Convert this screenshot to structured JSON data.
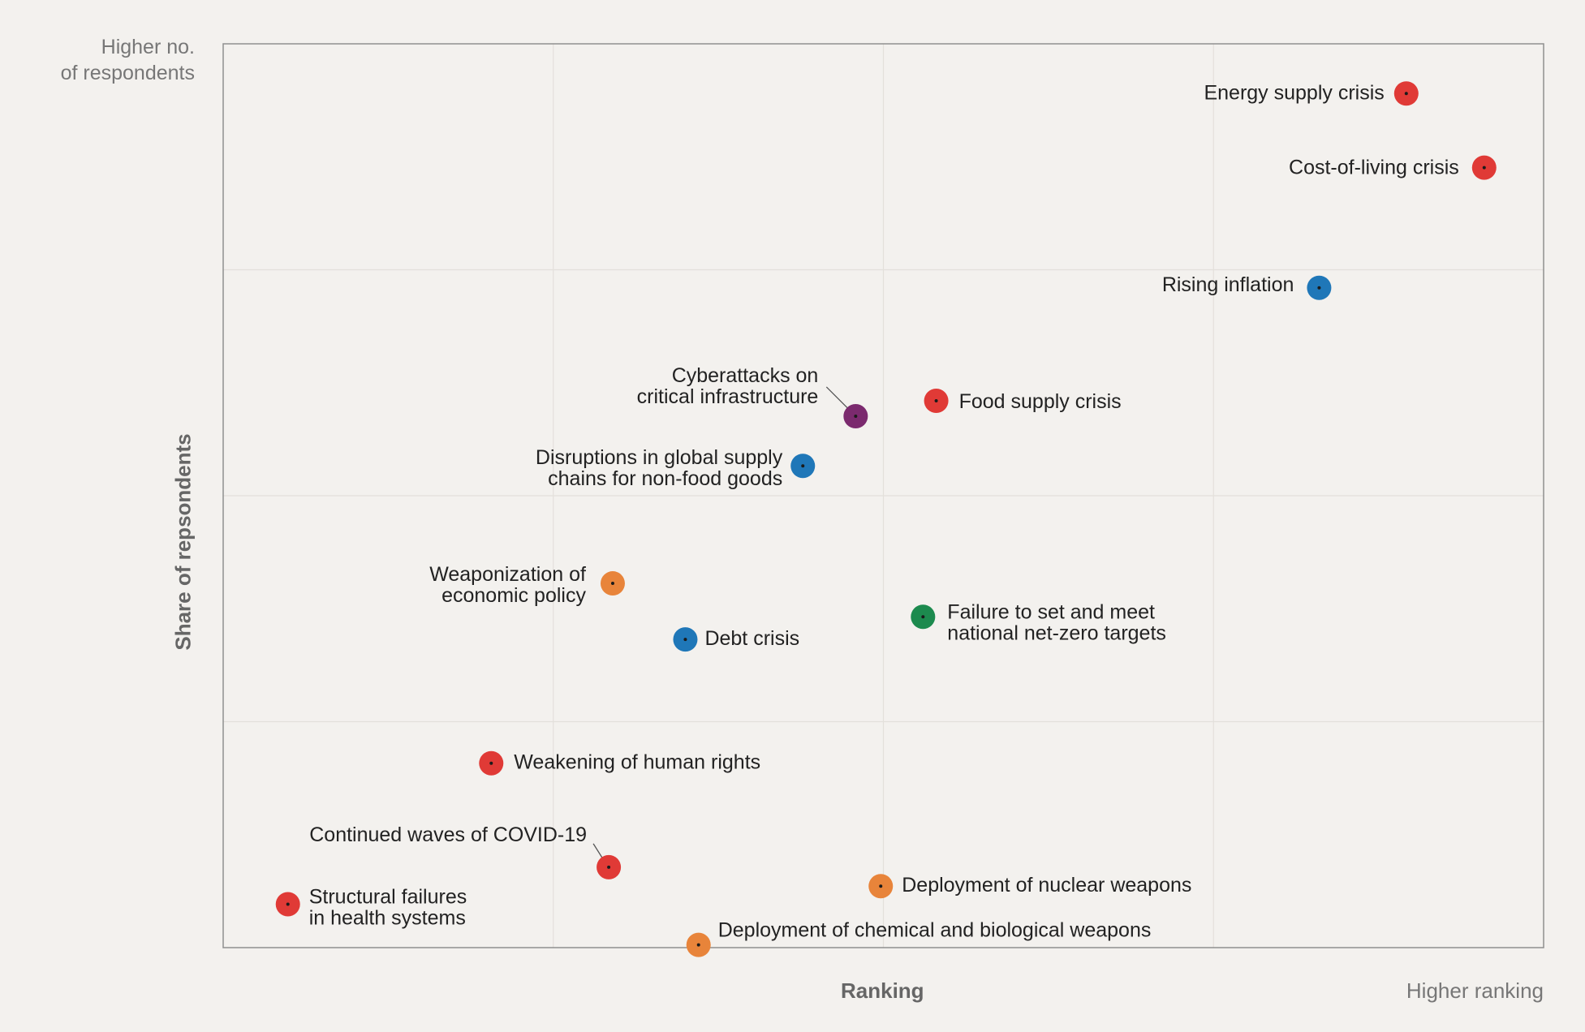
{
  "chart_data": {
    "type": "scatter",
    "title": "",
    "xlabel": "Ranking",
    "ylabel": "Share of repsondents",
    "x_high_label": "Higher ranking",
    "y_high_label": "Higher no. of respondents",
    "y_high_label_lines": [
      "Higher no.",
      "of respondents"
    ],
    "xlim": [
      0,
      1
    ],
    "ylim": [
      0,
      1
    ],
    "grid": true,
    "series": [
      {
        "label": "Energy supply crisis",
        "lines": [
          "Energy supply crisis"
        ],
        "x": 0.896,
        "y": 0.945,
        "color": "#e03a36"
      },
      {
        "label": "Cost-of-living crisis",
        "lines": [
          "Cost-of-living crisis"
        ],
        "x": 0.955,
        "y": 0.863,
        "color": "#e03a36"
      },
      {
        "label": "Rising inflation",
        "lines": [
          "Rising inflation"
        ],
        "x": 0.83,
        "y": 0.73,
        "color": "#1f77b8"
      },
      {
        "label": "Cyberattacks on critical infrastructure",
        "lines": [
          "Cyberattacks on",
          "critical infrastructure"
        ],
        "x": 0.479,
        "y": 0.588,
        "color": "#7b2a6e"
      },
      {
        "label": "Food supply crisis",
        "lines": [
          "Food supply crisis"
        ],
        "x": 0.54,
        "y": 0.605,
        "color": "#e03a36"
      },
      {
        "label": "Disruptions in global supply chains for non-food goods",
        "lines": [
          "Disruptions in global supply",
          "chains for non-food goods"
        ],
        "x": 0.439,
        "y": 0.533,
        "color": "#1f77b8"
      },
      {
        "label": "Weaponization of economic policy",
        "lines": [
          "Weaponization of",
          "economic policy"
        ],
        "x": 0.295,
        "y": 0.403,
        "color": "#e8843a"
      },
      {
        "label": "Debt crisis",
        "lines": [
          "Debt crisis"
        ],
        "x": 0.35,
        "y": 0.341,
        "color": "#1f77b8"
      },
      {
        "label": "Failure to set and meet national net-zero targets",
        "lines": [
          "Failure to set and meet",
          "national net-zero targets"
        ],
        "x": 0.53,
        "y": 0.366,
        "color": "#1c8a4e"
      },
      {
        "label": "Weakening of human rights",
        "lines": [
          "Weakening of human rights"
        ],
        "x": 0.203,
        "y": 0.204,
        "color": "#e03a36"
      },
      {
        "label": "Continued waves of COVID-19",
        "lines": [
          "Continued waves of COVID-19"
        ],
        "x": 0.292,
        "y": 0.089,
        "color": "#e03a36"
      },
      {
        "label": "Deployment of nuclear weapons",
        "lines": [
          "Deployment of nuclear weapons"
        ],
        "x": 0.498,
        "y": 0.068,
        "color": "#e8843a"
      },
      {
        "label": "Structural failures in health systems",
        "lines": [
          "Structural failures",
          "in health systems"
        ],
        "x": 0.049,
        "y": 0.048,
        "color": "#e03a36"
      },
      {
        "label": "Deployment of chemical and biological weapons",
        "lines": [
          "Deployment of chemical and biological weapons"
        ],
        "x": 0.36,
        "y": 0.003,
        "color": "#e8843a"
      }
    ]
  }
}
